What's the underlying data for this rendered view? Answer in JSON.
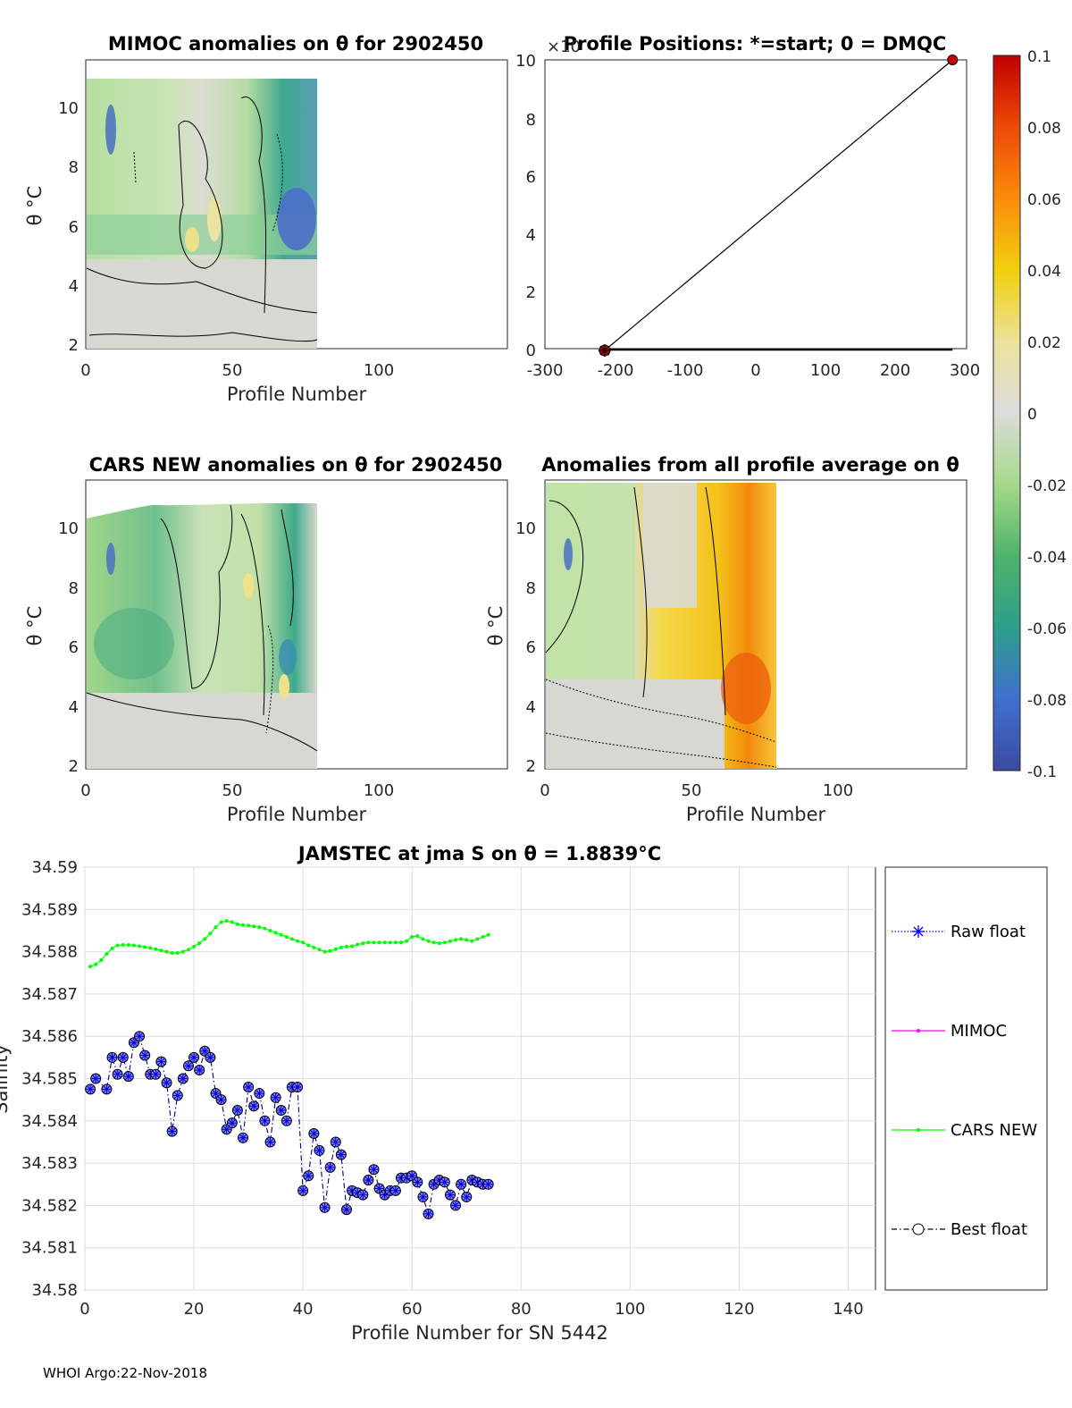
{
  "footer": "WHOI Argo:22-Nov-2018",
  "colorbar": {
    "ticks": [
      "0.1",
      "0.08",
      "0.06",
      "0.04",
      "0.02",
      "0",
      "-0.02",
      "-0.04",
      "-0.06",
      "-0.08",
      "-0.1"
    ],
    "range": [
      -0.1,
      0.1
    ]
  },
  "panels": {
    "mimoc": {
      "title": "MIMOC anomalies on θ  for 2902450",
      "xlabel": "Profile Number",
      "ylabel": "θ °C",
      "xticks": [
        "0",
        "50",
        "100"
      ],
      "yticks": [
        "2",
        "4",
        "6",
        "8",
        "10"
      ]
    },
    "positions": {
      "title": "Profile Positions: *=start; 0 = DMQC",
      "exponent": "×10",
      "xticks": [
        "-300",
        "-200",
        "-100",
        "0",
        "100",
        "200",
        "300"
      ],
      "yticks": [
        "0",
        "2",
        "4",
        "6",
        "8",
        "10"
      ]
    },
    "cars": {
      "title": "CARS NEW anomalies on θ for 2902450",
      "xlabel": "Profile Number",
      "ylabel": "θ °C",
      "xticks": [
        "0",
        "50",
        "100"
      ],
      "yticks": [
        "2",
        "4",
        "6",
        "8",
        "10"
      ]
    },
    "allavg": {
      "title": "Anomalies from all profile average on θ",
      "xlabel": "Profile Number",
      "ylabel": "θ °C",
      "xticks": [
        "0",
        "50",
        "100"
      ],
      "yticks": [
        "2",
        "4",
        "6",
        "8",
        "10"
      ]
    }
  },
  "chart_data": [
    {
      "type": "line",
      "title": "JAMSTEC at jma S on θ = 1.8839°C",
      "xlabel": "Profile Number for SN 5442",
      "ylabel": "Salinity",
      "xlim": [
        0,
        145
      ],
      "ylim": [
        34.58,
        34.59
      ],
      "xticks": [
        "0",
        "20",
        "40",
        "60",
        "80",
        "100",
        "120",
        "140"
      ],
      "yticks": [
        "34.58",
        "34.581",
        "34.582",
        "34.583",
        "34.584",
        "34.585",
        "34.586",
        "34.587",
        "34.588",
        "34.589",
        "34.59"
      ],
      "legend": [
        "Raw float",
        "MIMOC",
        "CARS NEW",
        "Best float"
      ],
      "series": [
        {
          "name": "CARS NEW",
          "color": "#00ff00",
          "x": [
            1,
            2,
            3,
            4,
            5,
            6,
            7,
            8,
            9,
            10,
            11,
            12,
            13,
            14,
            15,
            16,
            17,
            18,
            19,
            20,
            21,
            22,
            23,
            24,
            25,
            26,
            27,
            28,
            29,
            30,
            31,
            32,
            33,
            34,
            35,
            36,
            37,
            38,
            39,
            40,
            41,
            42,
            43,
            44,
            45,
            46,
            47,
            48,
            49,
            50,
            51,
            52,
            53,
            54,
            55,
            56,
            57,
            58,
            59,
            60,
            61,
            62,
            63,
            64,
            65,
            66,
            67,
            68,
            69,
            70,
            71,
            72,
            73,
            74
          ],
          "y": [
            34.58765,
            34.5877,
            34.5878,
            34.58795,
            34.58808,
            34.58815,
            34.58816,
            34.58816,
            34.58815,
            34.58813,
            34.58811,
            34.58809,
            34.58806,
            34.58803,
            34.588,
            34.58797,
            34.58797,
            34.588,
            34.58805,
            34.58812,
            34.5882,
            34.5883,
            34.58843,
            34.58858,
            34.5887,
            34.58873,
            34.5887,
            34.58865,
            34.58863,
            34.58862,
            34.5886,
            34.58858,
            34.58855,
            34.5885,
            34.58845,
            34.5884,
            34.58835,
            34.5883,
            34.58825,
            34.58822,
            34.58815,
            34.5881,
            34.58805,
            34.588,
            34.58802,
            34.58806,
            34.5881,
            34.58812,
            34.58813,
            34.58817,
            34.5882,
            34.58822,
            34.58822,
            34.58822,
            34.58822,
            34.58822,
            34.58822,
            34.58822,
            34.58825,
            34.58835,
            34.58837,
            34.5883,
            34.58825,
            34.58822,
            34.5882,
            34.58822,
            34.58825,
            34.58828,
            34.5883,
            34.58828,
            34.58825,
            34.5883,
            34.58835,
            34.5884
          ]
        },
        {
          "name": "Best float",
          "color": "#000080",
          "x": [
            1,
            2,
            4,
            5,
            6,
            7,
            8,
            9,
            10,
            11,
            12,
            13,
            14,
            15,
            16,
            17,
            18,
            19,
            20,
            21,
            22,
            23,
            24,
            25,
            26,
            27,
            28,
            29,
            30,
            31,
            32,
            33,
            34,
            35,
            36,
            37,
            38,
            39,
            40,
            41,
            42,
            43,
            44,
            45,
            46,
            47,
            48,
            49,
            50,
            51,
            52,
            53,
            54,
            55,
            56,
            57,
            58,
            59,
            60,
            61,
            62,
            63,
            64,
            65,
            66,
            67,
            68,
            69,
            70,
            71,
            72,
            73,
            74
          ],
          "y": [
            34.58475,
            34.585,
            34.58475,
            34.5855,
            34.5851,
            34.5855,
            34.58505,
            34.58585,
            34.586,
            34.58555,
            34.5851,
            34.5851,
            34.5854,
            34.5849,
            34.58375,
            34.5846,
            34.585,
            34.5853,
            34.5855,
            34.5852,
            34.58565,
            34.5855,
            34.58465,
            34.5845,
            34.5838,
            34.58395,
            34.58425,
            34.5836,
            34.5848,
            34.58435,
            34.58465,
            34.584,
            34.5835,
            34.58455,
            34.58425,
            34.584,
            34.5848,
            34.5848,
            34.58235,
            34.5827,
            34.5837,
            34.5833,
            34.58195,
            34.5829,
            34.5835,
            34.5832,
            34.5819,
            34.58235,
            34.5823,
            34.58225,
            34.5826,
            34.58285,
            34.5824,
            34.58225,
            34.58235,
            34.58235,
            34.58265,
            34.58265,
            34.5827,
            34.58255,
            34.5822,
            34.5818,
            34.5825,
            34.5826,
            34.58255,
            34.58225,
            34.582,
            34.5825,
            34.5822,
            34.5826,
            34.58255,
            34.5825,
            34.5825
          ]
        }
      ]
    },
    {
      "type": "scatter",
      "title": "Profile Positions: *=start; 0 = DMQC",
      "xlim": [
        -300,
        300
      ],
      "ylim": [
        0,
        10
      ],
      "series": [
        {
          "name": "track",
          "x": [
            -215,
            280
          ],
          "y": [
            0,
            10
          ]
        },
        {
          "name": "baseline",
          "x": [
            -215,
            280
          ],
          "y": [
            0,
            0
          ]
        }
      ],
      "points": [
        {
          "name": "start",
          "x": -215,
          "y": 0,
          "color": "#cc0000"
        },
        {
          "name": "end",
          "x": 280,
          "y": 10,
          "color": "#cc0000"
        }
      ]
    }
  ]
}
